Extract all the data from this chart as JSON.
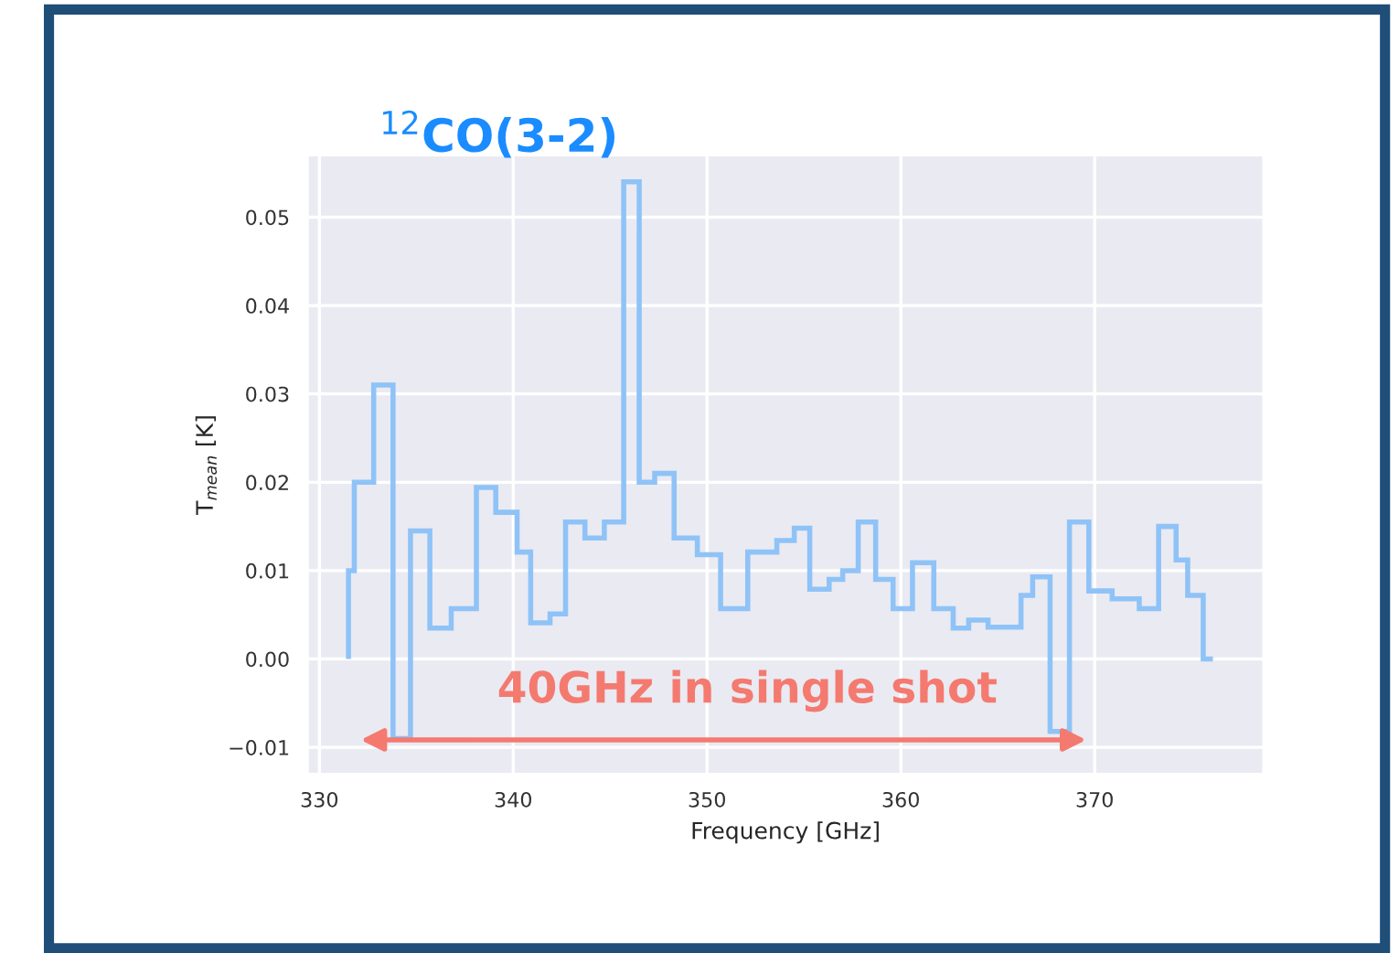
{
  "chart_data": {
    "type": "histogram",
    "xlabel": "Frequency [GHz]",
    "ylabel": "T$_{mean}$ [K]",
    "bins": [
      331.5,
      331.8,
      332.8,
      333.8,
      334.7,
      335.7,
      336.8,
      338.1,
      339.1,
      340.2,
      340.9,
      341.9,
      342.7,
      343.7,
      344.7,
      345.7,
      346.5,
      347.3,
      348.3,
      349.5,
      350.7,
      352.1,
      353.6,
      354.5,
      355.3,
      356.3,
      357.0,
      357.8,
      358.7,
      359.6,
      360.6,
      361.7,
      362.7,
      363.5,
      364.5,
      366.2,
      366.8,
      367.7,
      368.7,
      369.7,
      370.9,
      372.3,
      373.3,
      374.2,
      374.8,
      375.6,
      376.1
    ],
    "values": [
      0.01,
      0.02,
      0.031,
      -0.009,
      0.0145,
      0.0035,
      0.0057,
      0.0194,
      0.0166,
      0.0121,
      0.0041,
      0.0051,
      0.0155,
      0.0137,
      0.0155,
      0.054,
      0.02,
      0.021,
      0.0137,
      0.0118,
      0.0057,
      0.0121,
      0.0134,
      0.0148,
      0.0079,
      0.009,
      0.01,
      0.0155,
      0.009,
      0.0057,
      0.0109,
      0.0057,
      0.0035,
      0.0044,
      0.0036,
      0.0072,
      0.0093,
      -0.0082,
      0.0155,
      0.0077,
      0.0068,
      0.0057,
      0.015,
      0.0112,
      0.0072,
      0.0
    ],
    "color": "#8fc3f7",
    "xlim": [
      329.4,
      378.7
    ],
    "ylim": [
      -0.013,
      0.057
    ],
    "xticks": [
      330,
      340,
      350,
      360,
      370
    ],
    "yticks": [
      {
        "value": -0.01,
        "label": "−0.01"
      },
      {
        "value": 0.0,
        "label": "0.00"
      },
      {
        "value": 0.01,
        "label": "0.01"
      },
      {
        "value": 0.02,
        "label": "0.02"
      },
      {
        "value": 0.03,
        "label": "0.03"
      },
      {
        "value": 0.04,
        "label": "0.04"
      },
      {
        "value": 0.05,
        "label": "0.05"
      }
    ],
    "grid": true,
    "annotations": [
      {
        "text": "$^{12}$CO(3-2)",
        "x": 346.1,
        "y": 0.054
      },
      "40GHz in single shot"
    ]
  }
}
